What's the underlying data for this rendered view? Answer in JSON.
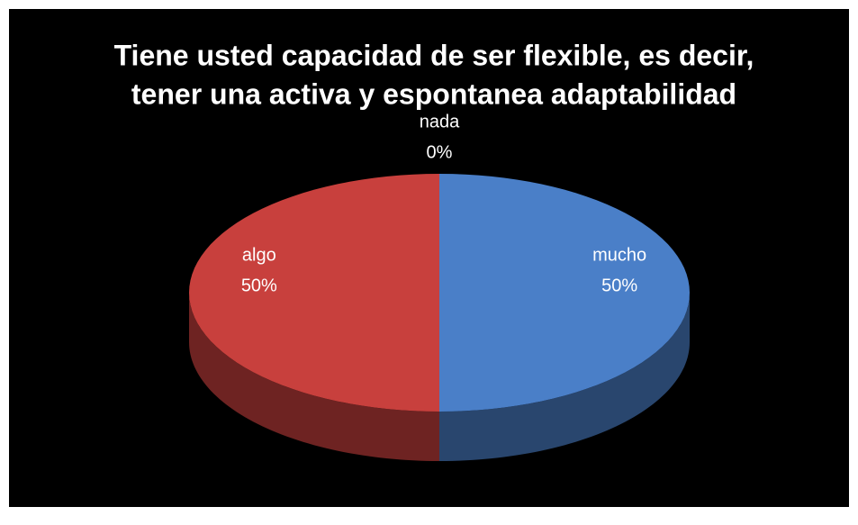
{
  "chart_data": {
    "type": "pie",
    "title": [
      "Tiene usted capacidad de ser flexible, es decir,",
      "tener una activa y espontanea adaptabilidad"
    ],
    "categories": [
      "mucho",
      "algo",
      "nada"
    ],
    "values": [
      50,
      50,
      0
    ],
    "value_labels": [
      "50%",
      "50%",
      "0%"
    ],
    "colors": [
      "#4a7fc8",
      "#c8403d",
      "#9bbb59"
    ]
  }
}
